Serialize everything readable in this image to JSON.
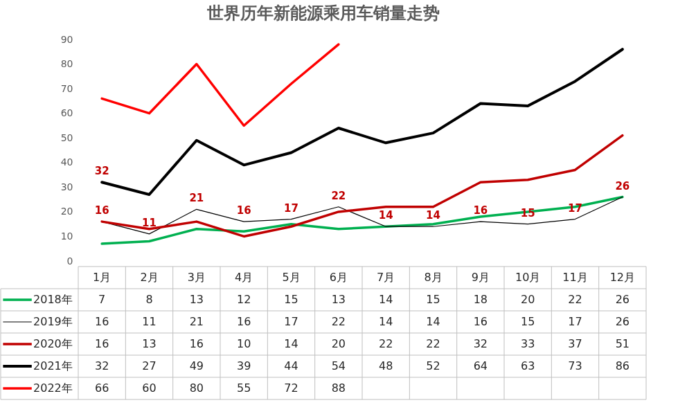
{
  "chart_data": {
    "type": "line",
    "title": "世界历年新能源乘用车销量走势",
    "categories": [
      "1月",
      "2月",
      "3月",
      "4月",
      "5月",
      "6月",
      "7月",
      "8月",
      "9月",
      "10月",
      "11月",
      "12月"
    ],
    "series": [
      {
        "name": "2018年",
        "color": "#00b050",
        "values": [
          7,
          8,
          13,
          12,
          15,
          13,
          14,
          15,
          18,
          20,
          22,
          26
        ]
      },
      {
        "name": "2019年",
        "color": "#000000",
        "values": [
          16,
          11,
          21,
          16,
          17,
          22,
          14,
          14,
          16,
          15,
          17,
          26
        ]
      },
      {
        "name": "2020年",
        "color": "#c00000",
        "values": [
          16,
          13,
          16,
          10,
          14,
          20,
          22,
          22,
          32,
          33,
          37,
          51
        ]
      },
      {
        "name": "2021年",
        "color": "#000000",
        "values": [
          32,
          27,
          49,
          39,
          44,
          54,
          48,
          52,
          64,
          63,
          73,
          86
        ]
      },
      {
        "name": "2022年",
        "color": "#ff0000",
        "values": [
          66,
          60,
          80,
          55,
          72,
          88,
          null,
          null,
          null,
          null,
          null,
          null
        ]
      }
    ],
    "ylim": [
      0,
      90
    ],
    "yticks": [
      0,
      10,
      20,
      30,
      40,
      50,
      60,
      70,
      80,
      90
    ],
    "annotations": [
      {
        "text": "32",
        "x": "1月",
        "y": 32
      },
      {
        "text": "16",
        "x": "1月",
        "y": 16
      },
      {
        "text": "11",
        "x": "2月",
        "y": 11
      },
      {
        "text": "21",
        "x": "3月",
        "y": 21
      },
      {
        "text": "16",
        "x": "4月",
        "y": 16
      },
      {
        "text": "17",
        "x": "5月",
        "y": 17
      },
      {
        "text": "22",
        "x": "6月",
        "y": 22
      },
      {
        "text": "14",
        "x": "7月",
        "y": 14
      },
      {
        "text": "14",
        "x": "8月",
        "y": 14
      },
      {
        "text": "16",
        "x": "9月",
        "y": 16
      },
      {
        "text": "15",
        "x": "10月",
        "y": 15
      },
      {
        "text": "17",
        "x": "11月",
        "y": 17
      },
      {
        "text": "26",
        "x": "12月",
        "y": 26
      }
    ],
    "data_labels": true,
    "legend": "bottom",
    "marker": "none",
    "line_style": "solid"
  }
}
